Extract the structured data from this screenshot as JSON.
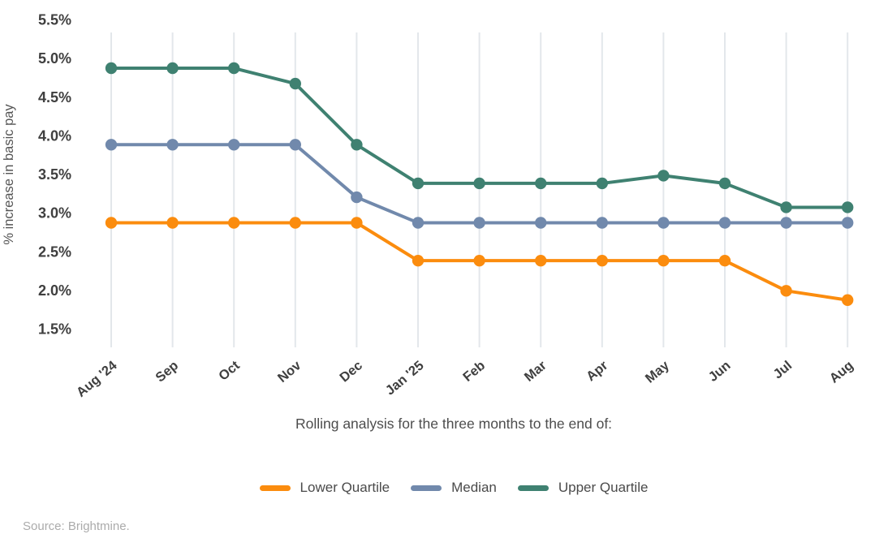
{
  "chart_data": {
    "type": "line",
    "categories": [
      "Aug '24",
      "Sep",
      "Oct",
      "Nov",
      "Dec",
      "Jan '25",
      "Feb",
      "Mar",
      "Apr",
      "May",
      "Jun",
      "Jul",
      "Aug"
    ],
    "series": [
      {
        "name": "Lower Quartile",
        "color": "#FB8C0E",
        "values": [
          2.87,
          2.87,
          2.87,
          2.87,
          2.87,
          2.38,
          2.38,
          2.38,
          2.38,
          2.38,
          2.38,
          1.99,
          1.87
        ]
      },
      {
        "name": "Median",
        "color": "#7189AC",
        "values": [
          3.88,
          3.88,
          3.88,
          3.88,
          3.2,
          2.87,
          2.87,
          2.87,
          2.87,
          2.87,
          2.87,
          2.87,
          2.87
        ]
      },
      {
        "name": "Upper Quartile",
        "color": "#3F8171",
        "values": [
          4.87,
          4.87,
          4.87,
          4.67,
          3.88,
          3.38,
          3.38,
          3.38,
          3.38,
          3.48,
          3.38,
          3.07,
          3.07
        ]
      }
    ],
    "title": "",
    "xlabel": "Rolling analysis for the three months to the end of:",
    "ylabel": "% increase in basic pay",
    "ylim": [
      1.5,
      5.5
    ],
    "yticks": [
      {
        "value": 5.5,
        "label": "5.5%"
      },
      {
        "value": 5.0,
        "label": "5.0%"
      },
      {
        "value": 4.5,
        "label": "4.5%"
      },
      {
        "value": 4.0,
        "label": "4.0%"
      },
      {
        "value": 3.5,
        "label": "3.5%"
      },
      {
        "value": 3.0,
        "label": "3.0%"
      },
      {
        "value": 2.5,
        "label": "2.5%"
      },
      {
        "value": 2.0,
        "label": "2.0%"
      },
      {
        "value": 1.5,
        "label": "1.5%"
      }
    ],
    "grid": "vertical",
    "legend_position": "bottom"
  },
  "colors": {
    "gridline": "#E3E7EB",
    "tick_label": "#3F3F3F",
    "axis_title": "#555555"
  },
  "source": "Source: Brightmine."
}
